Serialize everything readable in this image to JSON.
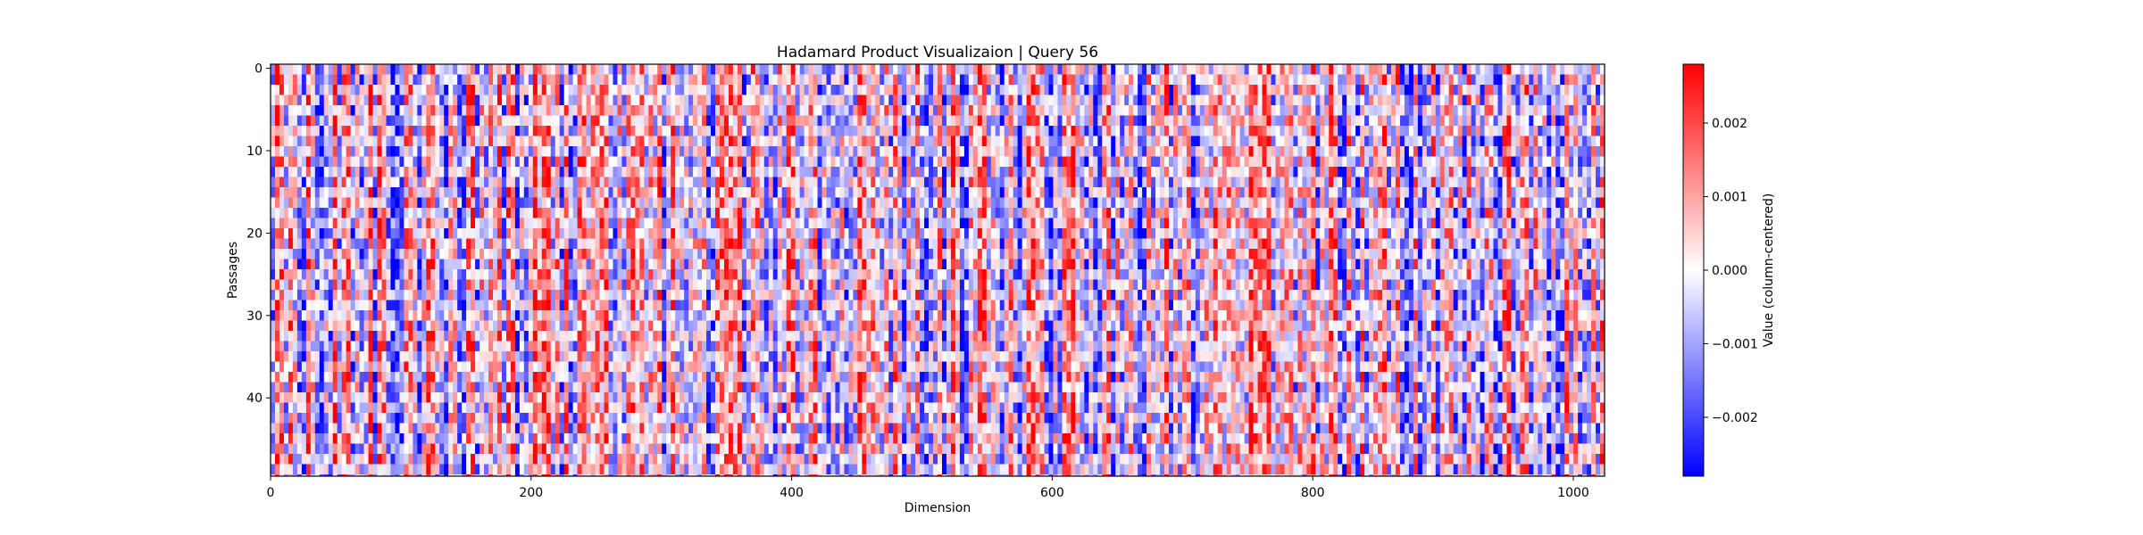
{
  "chart_data": {
    "type": "heatmap",
    "title": "Hadamard Product Visualizaion | Query 56",
    "xlabel": "Dimension",
    "ylabel": "Passages",
    "x_range": [
      0,
      1024
    ],
    "y_range": [
      0,
      50
    ],
    "x_ticks": [
      "0",
      "200",
      "400",
      "600",
      "800",
      "1000"
    ],
    "y_ticks": [
      "0",
      "10",
      "20",
      "30",
      "40"
    ],
    "n_rows": 50,
    "n_columns": 1024,
    "colormap": "bwr",
    "value_range": [
      -0.0028,
      0.0028
    ],
    "colorbar": {
      "label": "Value (column-centered)",
      "ticks": [
        "0.002",
        "0.001",
        "0.000",
        "−0.001",
        "−0.002"
      ]
    }
  }
}
